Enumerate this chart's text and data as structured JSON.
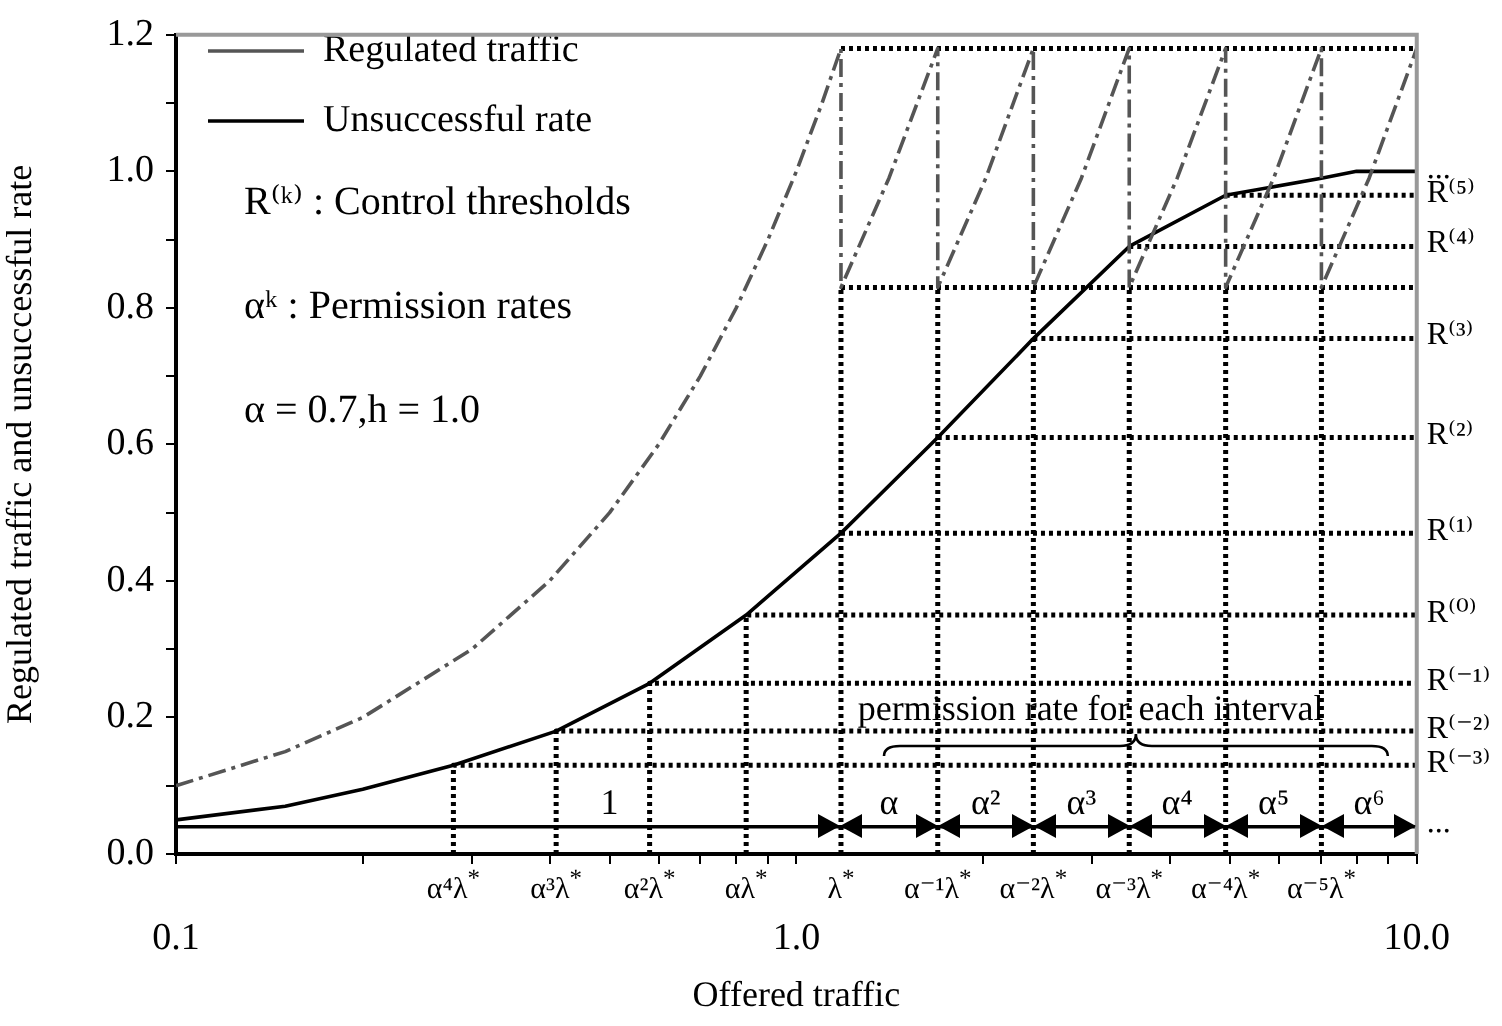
{
  "chart_data": {
    "type": "line",
    "xlabel": "Offered traffic",
    "ylabel": "Regulated traffic and unsuccessful rate",
    "log": "x",
    "xlim": [
      0.1,
      10
    ],
    "ylim": [
      0,
      1.2
    ],
    "xticks": [
      0.1,
      {
        "value": 0.2,
        "label": null
      },
      {
        "value": 0.3,
        "label": null
      },
      {
        "value": 0.4,
        "label": null
      },
      {
        "value": 0.5,
        "label": null
      },
      {
        "value": 0.6,
        "label": null
      },
      {
        "value": 0.7,
        "label": null
      },
      {
        "value": 0.8,
        "label": null
      },
      {
        "value": 0.9,
        "label": null
      },
      {
        "value": 1,
        "label": "1.0"
      },
      {
        "value": 2,
        "label": null
      },
      {
        "value": 3,
        "label": null
      },
      {
        "value": 4,
        "label": null
      },
      {
        "value": 5,
        "label": null
      },
      {
        "value": 6,
        "label": null
      },
      {
        "value": 7,
        "label": null
      },
      {
        "value": 8,
        "label": null
      },
      {
        "value": 9,
        "label": null
      },
      {
        "value": 10,
        "label": "10.0"
      }
    ],
    "yticks": [
      {
        "value": 0,
        "label": "0.0"
      },
      {
        "value": 0.1,
        "label": null
      },
      0.2,
      {
        "value": 0.3,
        "label": null
      },
      0.4,
      {
        "value": 0.5,
        "label": null
      },
      0.6,
      {
        "value": 0.7,
        "label": null
      },
      0.8,
      {
        "value": 0.9,
        "label": null
      },
      {
        "value": 1,
        "label": "1.0"
      },
      {
        "value": 1.1,
        "label": null
      },
      1.2
    ],
    "grid": false,
    "legend": "top left",
    "marker": "none",
    "series": [
      {
        "name": "Regulated traffic",
        "color": "#555555",
        "line_style": "dashed",
        "x": [
          0.1,
          0.15,
          0.2,
          0.3,
          0.4,
          0.5,
          0.6,
          0.7,
          0.8,
          0.9,
          1.0,
          1.1,
          1.18,
          1.18,
          1.41,
          1.69,
          1.69,
          2.02,
          2.41,
          2.41,
          2.88,
          3.44,
          3.44,
          4.11,
          4.92,
          4.92,
          5.88,
          7.02,
          7.02,
          8.38,
          10
        ],
        "values": [
          0.1,
          0.15,
          0.2,
          0.3,
          0.4,
          0.5,
          0.6,
          0.7,
          0.8,
          0.9,
          1.0,
          1.1,
          1.18,
          0.83,
          0.99,
          1.18,
          0.83,
          0.99,
          1.18,
          0.83,
          0.99,
          1.18,
          0.83,
          0.99,
          1.18,
          0.83,
          0.99,
          1.18,
          0.83,
          0.99,
          1.18
        ]
      },
      {
        "name": "Unsuccessful rate",
        "color": "#000000",
        "line_style": "solid",
        "x": [
          0.1,
          0.15,
          0.2,
          0.28,
          0.41,
          0.58,
          0.83,
          1.18,
          1.69,
          2.41,
          3.44,
          4.92,
          7.02,
          8,
          10
        ],
        "values": [
          0.05,
          0.07,
          0.095,
          0.13,
          0.18,
          0.25,
          0.35,
          0.47,
          0.61,
          0.755,
          0.89,
          0.965,
          0.99,
          1.0,
          1.0
        ]
      },
      {
        "color": "#000000",
        "line_style": "dotted",
        "x": [
          0.28,
          0.28,
          10
        ],
        "values": [
          0,
          0.13,
          0.13
        ]
      },
      {
        "color": "#000000",
        "line_style": "dotted",
        "x": [
          0.41,
          0.41,
          10
        ],
        "values": [
          0,
          0.18,
          0.18
        ]
      },
      {
        "color": "#000000",
        "line_style": "dotted",
        "x": [
          0.58,
          0.58,
          10
        ],
        "values": [
          0,
          0.25,
          0.25
        ]
      },
      {
        "color": "#000000",
        "line_style": "dotted",
        "x": [
          0.83,
          0.83,
          10
        ],
        "values": [
          0,
          0.35,
          0.35
        ]
      },
      {
        "color": "#000000",
        "line_style": "dotted",
        "x": [
          1.18,
          1.18
        ],
        "values": [
          0,
          0.83
        ]
      },
      {
        "color": "#000000",
        "line_style": "dotted",
        "x": [
          1.69,
          1.69
        ],
        "values": [
          0,
          0.83
        ]
      },
      {
        "color": "#000000",
        "line_style": "dotted",
        "x": [
          2.41,
          2.41
        ],
        "values": [
          0,
          0.83
        ]
      },
      {
        "color": "#000000",
        "line_style": "dotted",
        "x": [
          3.44,
          3.44
        ],
        "values": [
          0,
          0.83
        ]
      },
      {
        "color": "#000000",
        "line_style": "dotted",
        "x": [
          4.92,
          4.92
        ],
        "values": [
          0,
          0.83
        ]
      },
      {
        "color": "#000000",
        "line_style": "dotted",
        "x": [
          7.02,
          7.02
        ],
        "values": [
          0,
          0.83
        ]
      },
      {
        "color": "#000000",
        "line_style": "dotted",
        "x": [
          1.18,
          10
        ],
        "values": [
          0.47,
          0.47
        ]
      },
      {
        "color": "#000000",
        "line_style": "dotted",
        "x": [
          1.69,
          10
        ],
        "values": [
          0.61,
          0.61
        ]
      },
      {
        "color": "#000000",
        "line_style": "dotted",
        "x": [
          2.41,
          10
        ],
        "values": [
          0.755,
          0.755
        ]
      },
      {
        "color": "#000000",
        "line_style": "dotted",
        "x": [
          3.44,
          10
        ],
        "values": [
          0.89,
          0.89
        ]
      },
      {
        "color": "#000000",
        "line_style": "dotted",
        "x": [
          4.92,
          10
        ],
        "values": [
          0.965,
          0.965
        ]
      },
      {
        "color": "#000000",
        "line_style": "dotted",
        "x": [
          1.18,
          10
        ],
        "values": [
          0.83,
          0.83
        ]
      },
      {
        "color": "#000000",
        "line_style": "dotted",
        "x": [
          1.18,
          10
        ],
        "values": [
          1.18,
          1.18
        ]
      },
      {
        "color": "#000000",
        "line_style": "solid",
        "x": [
          0.1,
          1.18,
          1.69,
          2.41,
          3.44,
          4.92,
          7.02,
          10
        ],
        "values": [
          0.04,
          0.04,
          0.04,
          0.04,
          0.04,
          0.04,
          0.04,
          0.04
        ]
      }
    ],
    "annotations": [
      "R⁽ᵏ⁾ : Control thresholds",
      "αᵏ : Permission rates",
      "α = 0.7,h = 1.0",
      {
        "text": "...",
        "x": 10,
        "y": 1.0
      },
      {
        "text": "R⁽⁵⁾",
        "x": 10,
        "y": 0.965
      },
      {
        "text": "R⁽⁴⁾",
        "x": 10,
        "y": 0.89
      },
      {
        "text": "R⁽³⁾",
        "x": 10,
        "y": 0.755
      },
      {
        "text": "R⁽²⁾",
        "x": 10,
        "y": 0.61
      },
      {
        "text": "R⁽¹⁾",
        "x": 10,
        "y": 0.47
      },
      {
        "text": "R⁽⁰⁾",
        "x": 10,
        "y": 0.35
      },
      {
        "text": "R⁽⁻¹⁾",
        "x": 10,
        "y": 0.25
      },
      {
        "text": "R⁽⁻²⁾",
        "x": 10,
        "y": 0.18
      },
      {
        "text": "R⁽⁻³⁾",
        "x": 10,
        "y": 0.13
      },
      {
        "text": "α⁴λ$^{*}$",
        "x": 0.28,
        "y": 0
      },
      {
        "text": "α³λ$^{*}$",
        "x": 0.41,
        "y": 0
      },
      {
        "text": "α²λ$^{*}$",
        "x": 0.58,
        "y": 0
      },
      {
        "text": "αλ$^{*}$",
        "x": 0.83,
        "y": 0
      },
      {
        "text": "λ$^{*}$",
        "x": 1.18,
        "y": 0
      },
      {
        "text": "α⁻¹λ$^{*}$",
        "x": 1.69,
        "y": 0
      },
      {
        "text": "α⁻²λ$^{*}$",
        "x": 2.41,
        "y": 0
      },
      {
        "text": "α⁻³λ$^{*}$",
        "x": 3.44,
        "y": 0
      },
      {
        "text": "α⁻⁴λ$^{*}$",
        "x": 4.92,
        "y": 0
      },
      {
        "text": "α⁻⁵λ$^{*}$",
        "x": 7.02,
        "y": 0
      },
      {
        "text": "1",
        "x": 0.5,
        "y": 0.04
      },
      {
        "text": "α",
        "x": 1.41,
        "y": 0.04
      },
      {
        "text": "α²",
        "x": 2.02,
        "y": 0.04
      },
      {
        "text": "α³",
        "x": 2.88,
        "y": 0.04
      },
      {
        "text": "α⁴",
        "x": 4.11,
        "y": 0.04
      },
      {
        "text": "α⁵",
        "x": 5.88,
        "y": 0.04
      },
      {
        "text": "α⁶",
        "x": 8.38,
        "y": 0.04
      },
      {
        "text": "permission rate for each interval",
        "x": 2.98,
        "y": 0.18
      },
      {
        "text": "...",
        "x": 10,
        "y": 0.04
      }
    ]
  }
}
